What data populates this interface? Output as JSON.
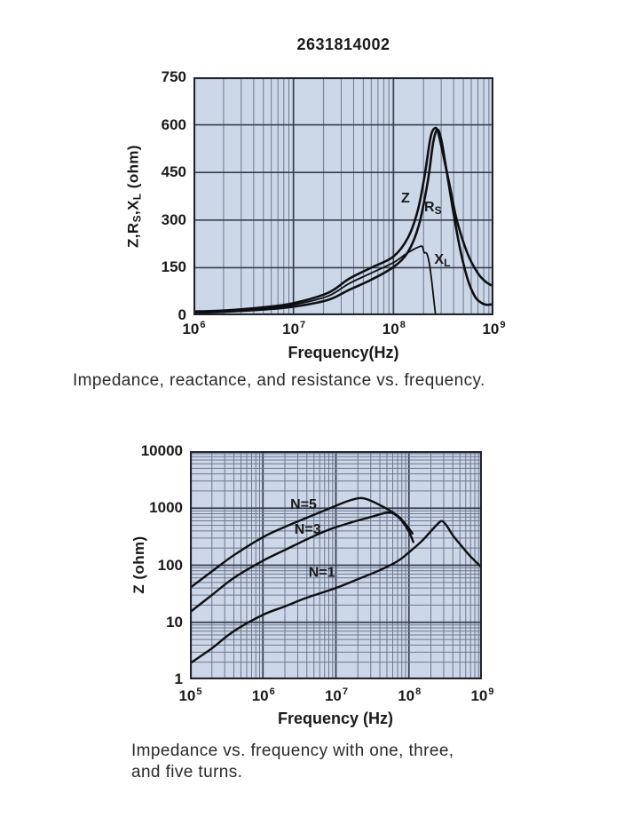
{
  "page": {
    "background": "#ffffff"
  },
  "colors": {
    "plot_bg": "#ccd7e7",
    "grid_minor": "#6e7890",
    "grid_major": "#373e4e",
    "border": "#20242e",
    "curve": "#0d0f13",
    "text": "#1a1a1a",
    "caption": "#2a2a2a"
  },
  "captions": [
    {
      "text": "Impedance, reactance, and resistance vs. frequency."
    },
    {
      "lines": [
        "Impedance vs. frequency with one, three,",
        "and five turns."
      ]
    }
  ],
  "chart_data": [
    {
      "id": "top",
      "type": "line",
      "title": "2631814002",
      "xlabel": "Frequency(Hz)",
      "ylabel": "Z,RS,XL (ohm)",
      "ylabel_segments": [
        {
          "t": "Z,R"
        },
        {
          "t": "S",
          "sub": true
        },
        {
          "t": ",X"
        },
        {
          "t": "L",
          "sub": true
        },
        {
          "t": " (ohm)"
        }
      ],
      "x_scale": "log",
      "x_domain": [
        1000000.0,
        1000000000.0
      ],
      "x_tick_exponents": [
        6,
        7,
        8,
        9
      ],
      "y_scale": "linear",
      "y_domain": [
        0,
        750
      ],
      "y_ticks": [
        0,
        150,
        300,
        450,
        600,
        750
      ],
      "grid": {
        "x_minor": true,
        "y_minor": false,
        "legend": "inline-labels"
      },
      "series": [
        {
          "name": "Z",
          "label_text": "Z",
          "label_sub": "",
          "label_at": [
            132000000.0,
            355
          ],
          "stroke_width": 2.6,
          "points": [
            [
              1000000.0,
              12
            ],
            [
              2000000.0,
              15
            ],
            [
              5000000.0,
              25
            ],
            [
              10000000.0,
              38
            ],
            [
              22000000.0,
              70
            ],
            [
              36000000.0,
              115
            ],
            [
              60000000.0,
              150
            ],
            [
              100000000.0,
              185
            ],
            [
              140000000.0,
              245
            ],
            [
              175000000.0,
              330
            ],
            [
              205000000.0,
              440
            ],
            [
              235000000.0,
              560
            ],
            [
              260000000.0,
              590
            ],
            [
              280000000.0,
              575
            ],
            [
              310000000.0,
              515
            ],
            [
              370000000.0,
              400
            ],
            [
              430000000.0,
              300
            ],
            [
              550000000.0,
              195
            ],
            [
              700000000.0,
              132
            ],
            [
              850000000.0,
              104
            ],
            [
              1000000000.0,
              92
            ]
          ]
        },
        {
          "name": "RS",
          "label_text": "R",
          "label_sub": "S",
          "label_at": [
            248000000.0,
            328
          ],
          "stroke_width": 2.6,
          "points": [
            [
              1000000.0,
              8
            ],
            [
              2000000.0,
              11
            ],
            [
              5000000.0,
              18
            ],
            [
              10000000.0,
              27
            ],
            [
              22000000.0,
              48
            ],
            [
              36000000.0,
              80
            ],
            [
              60000000.0,
              112
            ],
            [
              100000000.0,
              152
            ],
            [
              140000000.0,
              200
            ],
            [
              180000000.0,
              285
            ],
            [
              220000000.0,
              420
            ],
            [
              250000000.0,
              545
            ],
            [
              275000000.0,
              585
            ],
            [
              300000000.0,
              555
            ],
            [
              330000000.0,
              480
            ],
            [
              390000000.0,
              340
            ],
            [
              460000000.0,
              215
            ],
            [
              550000000.0,
              115
            ],
            [
              650000000.0,
              60
            ],
            [
              750000000.0,
              40
            ],
            [
              850000000.0,
              33
            ],
            [
              1000000000.0,
              35
            ]
          ]
        },
        {
          "name": "XL",
          "label_text": "X",
          "label_sub": "L",
          "label_at": [
            308000000.0,
            162
          ],
          "stroke_width": 1.8,
          "points": [
            [
              1000000.0,
              10
            ],
            [
              2000000.0,
              13
            ],
            [
              5000000.0,
              21
            ],
            [
              10000000.0,
              33
            ],
            [
              22000000.0,
              60
            ],
            [
              36000000.0,
              100
            ],
            [
              60000000.0,
              133
            ],
            [
              100000000.0,
              166
            ],
            [
              130000000.0,
              191
            ],
            [
              160000000.0,
              208
            ],
            [
              190000000.0,
              218
            ],
            [
              198000000.0,
              210
            ],
            [
              203000000.0,
              197
            ],
            [
              215000000.0,
              195
            ],
            [
              228000000.0,
              165
            ],
            [
              242000000.0,
              105
            ],
            [
              255000000.0,
              40
            ],
            [
              264000000.0,
              0
            ]
          ]
        }
      ]
    },
    {
      "id": "bottom",
      "type": "line",
      "title": "",
      "xlabel": "Frequency (Hz)",
      "ylabel": "Z (ohm)",
      "ylabel_segments": [
        {
          "t": "Z (ohm)"
        }
      ],
      "x_scale": "log",
      "x_domain": [
        100000.0,
        1000000000.0
      ],
      "x_tick_exponents": [
        5,
        6,
        7,
        8,
        9
      ],
      "y_scale": "log",
      "y_domain": [
        1,
        10000
      ],
      "y_ticks": [
        1,
        10,
        100,
        1000,
        10000
      ],
      "grid": {
        "x_minor": true,
        "y_minor": true,
        "legend": "inline-labels"
      },
      "series": [
        {
          "name": "N=5",
          "label_text": "N=5",
          "label_sub": "",
          "label_at": [
            3600000.0,
            980
          ],
          "stroke_width": 2.4,
          "points": [
            [
              100000.0,
              40
            ],
            [
              200000.0,
              78
            ],
            [
              400000.0,
              150
            ],
            [
              1000000.0,
              310
            ],
            [
              2000000.0,
              470
            ],
            [
              4000000.0,
              680
            ],
            [
              8000000.0,
              980
            ],
            [
              14000000.0,
              1310
            ],
            [
              21000000.0,
              1500
            ],
            [
              28000000.0,
              1400
            ],
            [
              43000000.0,
              1080
            ],
            [
              68000000.0,
              760
            ],
            [
              90000000.0,
              530
            ],
            [
              112000000.0,
              360
            ]
          ]
        },
        {
          "name": "N=3",
          "label_text": "N=3",
          "label_sub": "",
          "label_at": [
            4100000.0,
            360
          ],
          "stroke_width": 2.4,
          "points": [
            [
              100000.0,
              15
            ],
            [
              200000.0,
              30
            ],
            [
              400000.0,
              60
            ],
            [
              1000000.0,
              120
            ],
            [
              2000000.0,
              185
            ],
            [
              4000000.0,
              285
            ],
            [
              8000000.0,
              420
            ],
            [
              16000000.0,
              560
            ],
            [
              30000000.0,
              700
            ],
            [
              51000000.0,
              840
            ],
            [
              65000000.0,
              770
            ],
            [
              80000000.0,
              600
            ],
            [
              100000000.0,
              390
            ],
            [
              115000000.0,
              255
            ]
          ]
        },
        {
          "name": "N=1",
          "label_text": "N=1",
          "label_sub": "",
          "label_at": [
            6400000.0,
            63
          ],
          "stroke_width": 2.4,
          "points": [
            [
              100000.0,
              1.9
            ],
            [
              200000.0,
              3.5
            ],
            [
              400000.0,
              7
            ],
            [
              1000000.0,
              13.5
            ],
            [
              2000000.0,
              19
            ],
            [
              4000000.0,
              27
            ],
            [
              10000000.0,
              40
            ],
            [
              20000000.0,
              57
            ],
            [
              40000000.0,
              82
            ],
            [
              70000000.0,
              118
            ],
            [
              100000000.0,
              168
            ],
            [
              150000000.0,
              265
            ],
            [
              200000000.0,
              395
            ],
            [
              250000000.0,
              535
            ],
            [
              285000000.0,
              595
            ],
            [
              330000000.0,
              490
            ],
            [
              400000000.0,
              335
            ],
            [
              500000000.0,
              235
            ],
            [
              700000000.0,
              142
            ],
            [
              1000000000.0,
              91
            ]
          ]
        }
      ]
    }
  ]
}
